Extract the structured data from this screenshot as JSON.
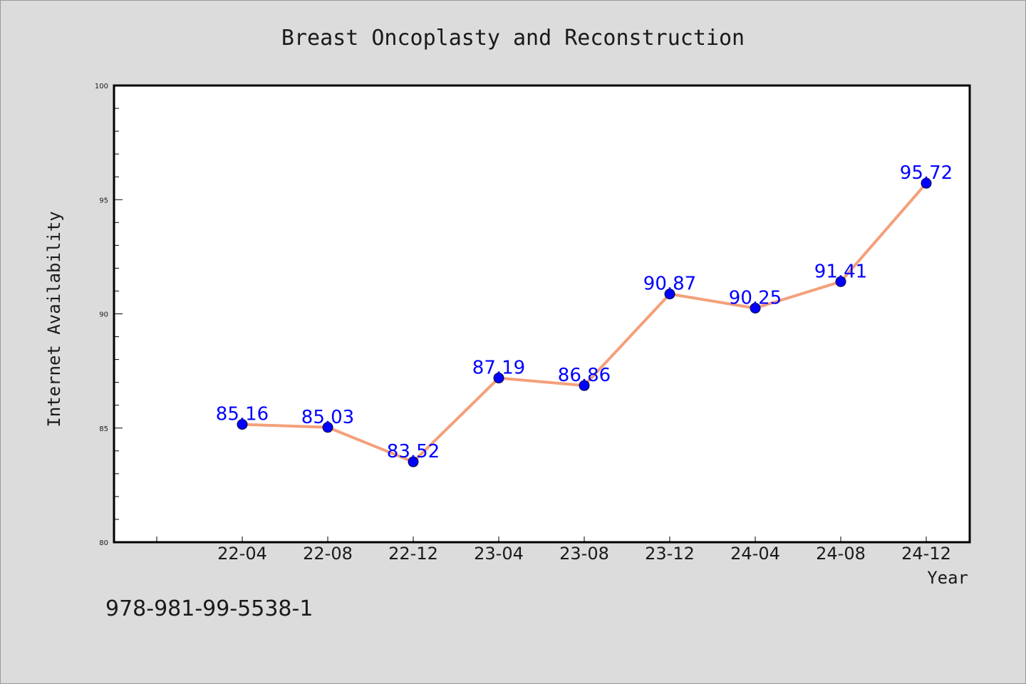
{
  "chart_data": {
    "type": "line",
    "title": "Breast Oncoplasty and Reconstruction",
    "xlabel": "Year",
    "ylabel": "Internet Availability",
    "categories": [
      "22-04",
      "22-08",
      "22-12",
      "23-04",
      "23-08",
      "23-12",
      "24-04",
      "24-08",
      "24-12"
    ],
    "series": [
      {
        "values": [
          85.16,
          85.03,
          83.52,
          87.19,
          86.86,
          90.87,
          90.25,
          91.41,
          95.72
        ]
      }
    ],
    "data_labels": [
      "85.16",
      "85.03",
      "83.52",
      "87.19",
      "86.86",
      "90.87",
      "90.25",
      "91.41",
      "95.72"
    ],
    "ylim": [
      80,
      100
    ],
    "yticks": [
      "80",
      "85",
      "90",
      "95",
      "100"
    ],
    "grid": false,
    "line_color": "#f4a07a",
    "marker_color": "#0000ff",
    "label_color": "#0000ff"
  },
  "footer": {
    "text": "978-981-99-5538-1"
  }
}
